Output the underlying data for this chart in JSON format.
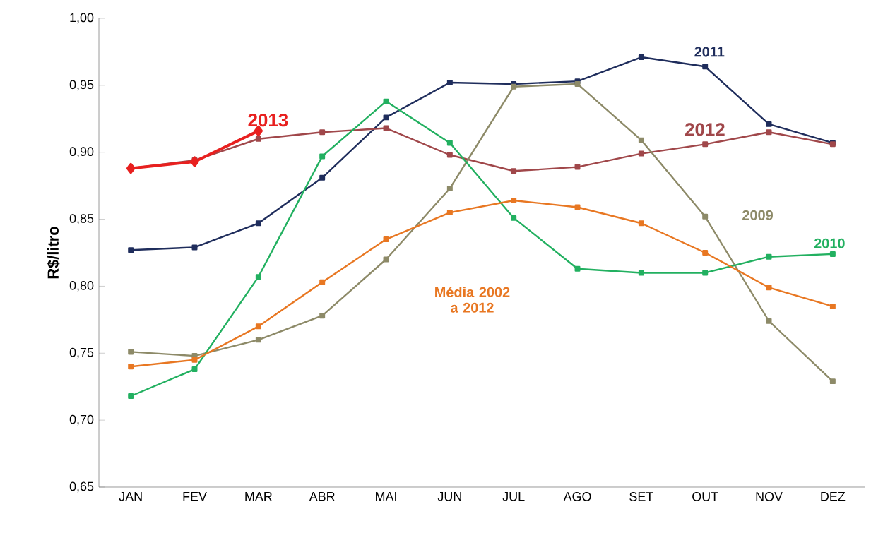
{
  "chart_data": {
    "type": "line",
    "ylabel": "R$/litro",
    "categories": [
      "JAN",
      "FEV",
      "MAR",
      "ABR",
      "MAI",
      "JUN",
      "JUL",
      "AGO",
      "SET",
      "OUT",
      "NOV",
      "DEZ"
    ],
    "series": [
      {
        "name": "2011",
        "color": "#1f2d5c",
        "values": [
          0.827,
          0.829,
          0.847,
          0.881,
          0.926,
          0.952,
          0.951,
          0.953,
          0.971,
          0.964,
          0.921,
          0.907
        ]
      },
      {
        "name": "2012",
        "color": "#a0474a",
        "values": [
          0.888,
          0.894,
          0.91,
          0.915,
          0.918,
          0.898,
          0.886,
          0.889,
          0.899,
          0.906,
          0.915,
          0.906
        ]
      },
      {
        "name": "2009",
        "color": "#8d8a68",
        "values": [
          0.751,
          0.748,
          0.76,
          0.778,
          0.82,
          0.873,
          0.949,
          0.951,
          0.909,
          0.852,
          0.774,
          0.729
        ]
      },
      {
        "name": "2010",
        "color": "#22b060",
        "values": [
          0.718,
          0.738,
          0.807,
          0.897,
          0.938,
          0.907,
          0.851,
          0.813,
          0.81,
          0.81,
          0.822,
          0.824
        ]
      },
      {
        "name": "Média 2002 a 2012",
        "color": "#e87722",
        "values": [
          0.74,
          0.745,
          0.77,
          0.803,
          0.835,
          0.855,
          0.864,
          0.859,
          0.847,
          0.825,
          0.799,
          0.785
        ]
      },
      {
        "name": "2013",
        "color": "#e8201f",
        "marker": "diamond",
        "values": [
          0.888,
          0.893,
          0.916,
          null,
          null,
          null,
          null,
          null,
          null,
          null,
          null,
          null
        ]
      }
    ],
    "ylim": [
      0.65,
      1.0
    ],
    "yticks": [
      {
        "value": 0.65,
        "label": "0,65"
      },
      {
        "value": 0.7,
        "label": "0,70"
      },
      {
        "value": 0.75,
        "label": "0,75"
      },
      {
        "value": 0.8,
        "label": "0,80"
      },
      {
        "value": 0.85,
        "label": "0,85"
      },
      {
        "value": 0.9,
        "label": "0,90"
      },
      {
        "value": 0.95,
        "label": "0,95"
      },
      {
        "value": 1.0,
        "label": "1,00"
      }
    ],
    "marker": "square",
    "line_style": "solid",
    "legend": false,
    "grid": false
  }
}
